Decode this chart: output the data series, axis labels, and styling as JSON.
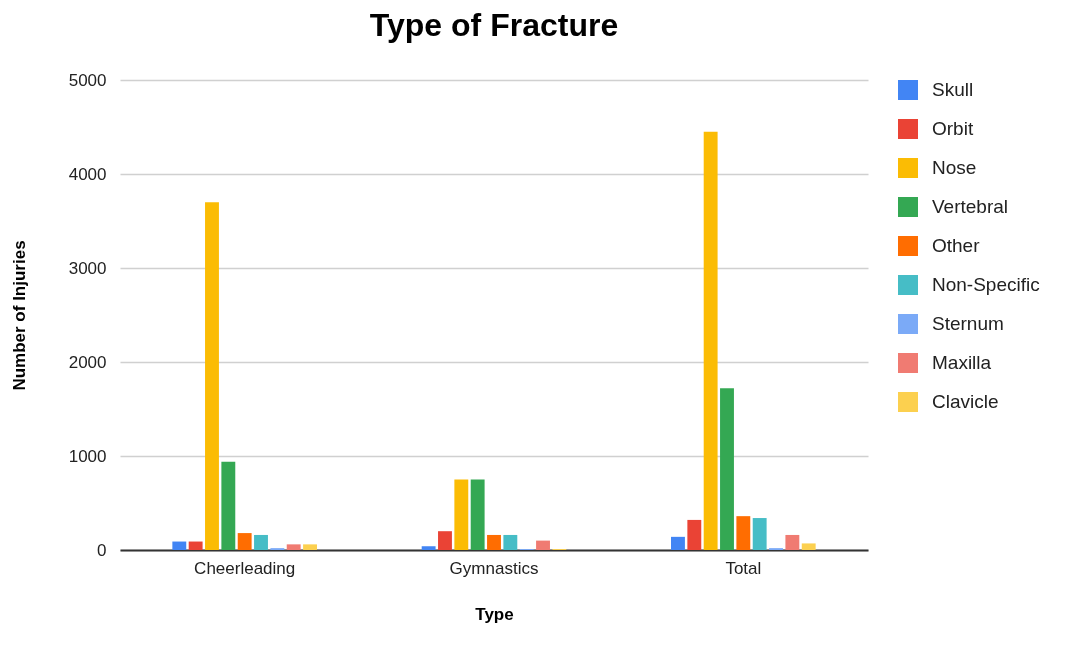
{
  "chart_data": {
    "type": "bar",
    "title": "Type of Fracture",
    "xlabel": "Type",
    "ylabel": "Number of Injuries",
    "categories": [
      "Cheerleading",
      "Gymnastics",
      "Total"
    ],
    "series": [
      {
        "name": "Skull",
        "color": "#4285f4",
        "values": [
          90,
          40,
          140
        ]
      },
      {
        "name": "Orbit",
        "color": "#ea4335",
        "values": [
          90,
          200,
          320
        ]
      },
      {
        "name": "Nose",
        "color": "#fbbc04",
        "values": [
          3700,
          750,
          4450
        ]
      },
      {
        "name": "Vertebral",
        "color": "#34a853",
        "values": [
          940,
          750,
          1720
        ]
      },
      {
        "name": "Other",
        "color": "#ff6d01",
        "values": [
          180,
          160,
          360
        ]
      },
      {
        "name": "Non-Specific",
        "color": "#46bdc6",
        "values": [
          160,
          160,
          340
        ]
      },
      {
        "name": "Sternum",
        "color": "#7baaf7",
        "values": [
          20,
          10,
          20
        ]
      },
      {
        "name": "Maxilla",
        "color": "#f07b72",
        "values": [
          60,
          100,
          160
        ]
      },
      {
        "name": "Clavicle",
        "color": "#fcd04f",
        "values": [
          60,
          10,
          70
        ]
      }
    ],
    "ylim": [
      0,
      5000
    ],
    "yticks": [
      0,
      1000,
      2000,
      3000,
      4000,
      5000
    ],
    "grid": "y",
    "legend": "right"
  }
}
